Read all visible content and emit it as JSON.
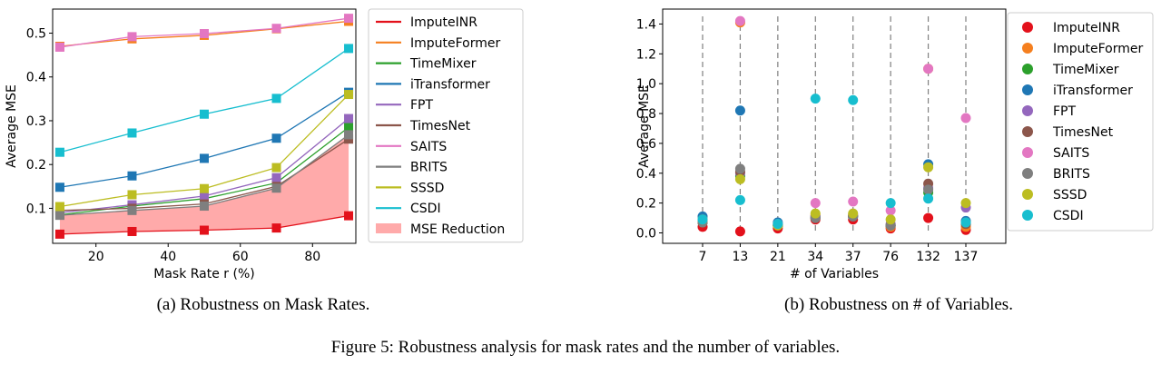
{
  "figure_caption": "Figure 5: Robustness analysis for mask rates and the number of variables.",
  "panel_a_caption": "(a) Robustness on Mask Rates.",
  "panel_b_caption": "(b) Robustness on # of Variables.",
  "colors": {
    "ImputeINR": "#e3111b",
    "ImputeFormer": "#f57f1f",
    "TimeMixer": "#2ca02c",
    "iTransformer": "#1f77b4",
    "FPT": "#9467bd",
    "TimesNet": "#8c564b",
    "SAITS": "#e377c2",
    "BRITS": "#7f7f7f",
    "SSSD": "#bcbd22",
    "CSDI": "#17becf",
    "MSE Reduction": "#ffaaaa"
  },
  "chart_data": [
    {
      "type": "line",
      "xlabel": "Mask Rate r (%)",
      "ylabel": "Average MSE",
      "xlim": [
        8,
        92
      ],
      "ylim": [
        0.02,
        0.555
      ],
      "xticks": [
        20,
        40,
        60,
        80
      ],
      "yticks": [
        0.1,
        0.2,
        0.3,
        0.4,
        0.5
      ],
      "x": [
        10,
        30,
        50,
        70,
        90
      ],
      "legend_position": "outside-right",
      "shaded_region": {
        "name": "MSE Reduction",
        "between": [
          "ImputeINR",
          "BRITS"
        ]
      },
      "series": [
        {
          "name": "ImputeINR",
          "values": [
            0.041,
            0.047,
            0.05,
            0.055,
            0.083
          ]
        },
        {
          "name": "ImputeFormer",
          "values": [
            0.47,
            0.487,
            0.495,
            0.51,
            0.527
          ]
        },
        {
          "name": "TimeMixer",
          "values": [
            0.085,
            0.105,
            0.122,
            0.158,
            0.285
          ]
        },
        {
          "name": "iTransformer",
          "values": [
            0.148,
            0.174,
            0.214,
            0.26,
            0.365
          ]
        },
        {
          "name": "FPT",
          "values": [
            0.09,
            0.108,
            0.128,
            0.17,
            0.305
          ]
        },
        {
          "name": "TimesNet",
          "values": [
            0.095,
            0.1,
            0.11,
            0.15,
            0.258
          ]
        },
        {
          "name": "SAITS",
          "values": [
            0.468,
            0.492,
            0.499,
            0.511,
            0.534
          ]
        },
        {
          "name": "BRITS",
          "values": [
            0.084,
            0.095,
            0.105,
            0.146,
            0.268
          ]
        },
        {
          "name": "SSSD",
          "values": [
            0.104,
            0.131,
            0.145,
            0.193,
            0.36
          ]
        },
        {
          "name": "CSDI",
          "values": [
            0.228,
            0.272,
            0.315,
            0.351,
            0.465
          ]
        }
      ]
    },
    {
      "type": "scatter",
      "xlabel": "# of Variables",
      "ylabel": "Average MSE",
      "categories": [
        "7",
        "13",
        "21",
        "34",
        "37",
        "76",
        "132",
        "137"
      ],
      "ylim": [
        -0.07,
        1.5
      ],
      "yticks": [
        0.0,
        0.2,
        0.4,
        0.6,
        0.8,
        1.0,
        1.2,
        1.4
      ],
      "vertical_dashed_lines": true,
      "legend_position": "outside-right",
      "series": [
        {
          "name": "ImputeINR",
          "values": [
            0.04,
            0.01,
            0.03,
            0.09,
            0.09,
            0.03,
            0.1,
            0.02
          ]
        },
        {
          "name": "ImputeFormer",
          "values": [
            0.07,
            1.41,
            0.05,
            0.12,
            0.12,
            0.04,
            1.1,
            0.04
          ]
        },
        {
          "name": "TimeMixer",
          "values": [
            0.07,
            0.38,
            0.05,
            0.1,
            0.11,
            0.05,
            0.27,
            0.06
          ]
        },
        {
          "name": "iTransformer",
          "values": [
            0.11,
            0.82,
            0.07,
            0.11,
            0.11,
            0.05,
            0.46,
            0.08
          ]
        },
        {
          "name": "FPT",
          "values": [
            0.08,
            0.4,
            0.05,
            0.11,
            0.12,
            0.06,
            0.3,
            0.17
          ]
        },
        {
          "name": "TimesNet",
          "values": [
            0.07,
            0.41,
            0.05,
            0.1,
            0.11,
            0.05,
            0.33,
            0.06
          ]
        },
        {
          "name": "SAITS",
          "values": [
            0.08,
            1.42,
            0.06,
            0.2,
            0.21,
            0.15,
            1.1,
            0.77
          ]
        },
        {
          "name": "BRITS",
          "values": [
            0.07,
            0.43,
            0.05,
            0.1,
            0.11,
            0.05,
            0.29,
            0.07
          ]
        },
        {
          "name": "SSSD",
          "values": [
            0.09,
            0.36,
            0.05,
            0.13,
            0.13,
            0.09,
            0.44,
            0.2
          ]
        },
        {
          "name": "CSDI",
          "values": [
            0.09,
            0.22,
            0.06,
            0.9,
            0.89,
            0.2,
            0.23,
            0.07
          ]
        }
      ]
    }
  ]
}
